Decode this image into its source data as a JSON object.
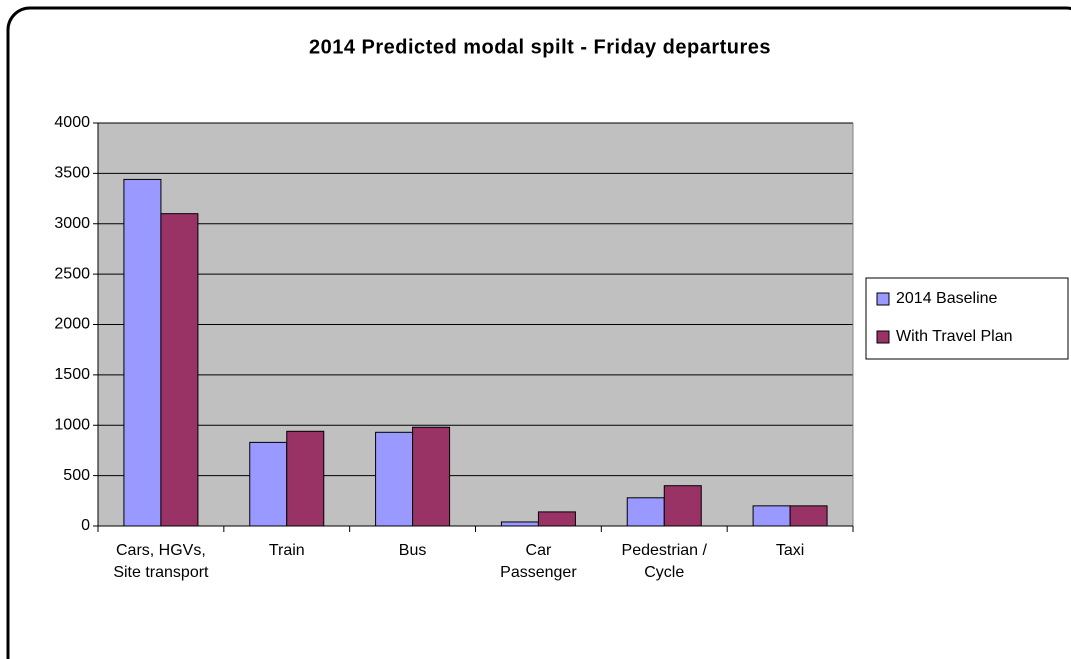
{
  "chart_data": {
    "type": "bar",
    "title": "2014 Predicted modal spilt - Friday departures",
    "categories": [
      "Cars, HGVs, Site transport",
      "Train",
      "Bus",
      "Car Passenger",
      "Pedestrian / Cycle",
      "Taxi"
    ],
    "series": [
      {
        "name": "2014 Baseline",
        "color": "#9999ff",
        "values": [
          3440,
          830,
          930,
          40,
          280,
          200
        ]
      },
      {
        "name": "With Travel Plan",
        "color": "#993366",
        "values": [
          3100,
          940,
          980,
          140,
          400,
          200
        ]
      }
    ],
    "ylim": [
      0,
      4000
    ],
    "yticks": [
      0,
      500,
      1000,
      1500,
      2000,
      2500,
      3000,
      3500,
      4000
    ],
    "grid": true,
    "legend": "right",
    "plot_background": "#c0c0c0"
  }
}
